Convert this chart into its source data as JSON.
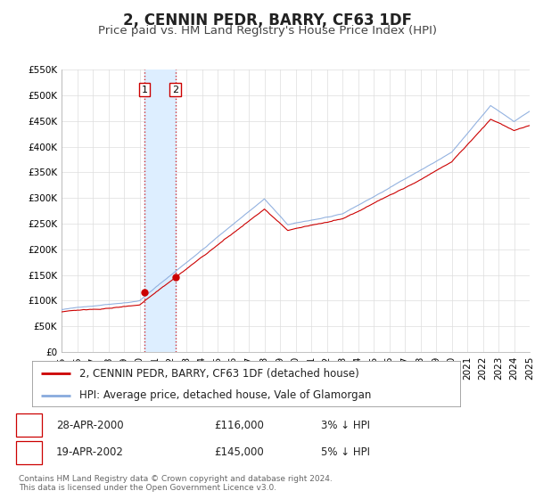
{
  "title": "2, CENNIN PEDR, BARRY, CF63 1DF",
  "subtitle": "Price paid vs. HM Land Registry's House Price Index (HPI)",
  "ylim": [
    0,
    550000
  ],
  "xlim": [
    1995.0,
    2025.0
  ],
  "yticks": [
    0,
    50000,
    100000,
    150000,
    200000,
    250000,
    300000,
    350000,
    400000,
    450000,
    500000,
    550000
  ],
  "ytick_labels": [
    "£0",
    "£50K",
    "£100K",
    "£150K",
    "£200K",
    "£250K",
    "£300K",
    "£350K",
    "£400K",
    "£450K",
    "£500K",
    "£550K"
  ],
  "sale1_date": 2000.32,
  "sale1_price": 116000,
  "sale1_label": "1",
  "sale2_date": 2002.3,
  "sale2_price": 145000,
  "sale2_label": "2",
  "legend_line1": "2, CENNIN PEDR, BARRY, CF63 1DF (detached house)",
  "legend_line2": "HPI: Average price, detached house, Vale of Glamorgan",
  "sale1_date_str": "28-APR-2000",
  "sale1_price_str": "£116,000",
  "sale1_hpi_str": "3% ↓ HPI",
  "sale2_date_str": "19-APR-2002",
  "sale2_price_str": "£145,000",
  "sale2_hpi_str": "5% ↓ HPI",
  "footer1": "Contains HM Land Registry data © Crown copyright and database right 2024.",
  "footer2": "This data is licensed under the Open Government Licence v3.0.",
  "price_color": "#cc0000",
  "hpi_color": "#88aadd",
  "shade_color": "#ddeeff",
  "background_color": "#ffffff",
  "grid_color": "#dddddd",
  "title_fontsize": 12,
  "subtitle_fontsize": 9.5,
  "tick_fontsize": 7.5,
  "legend_fontsize": 8.5,
  "annotation_fontsize": 8.5,
  "footer_fontsize": 6.5
}
